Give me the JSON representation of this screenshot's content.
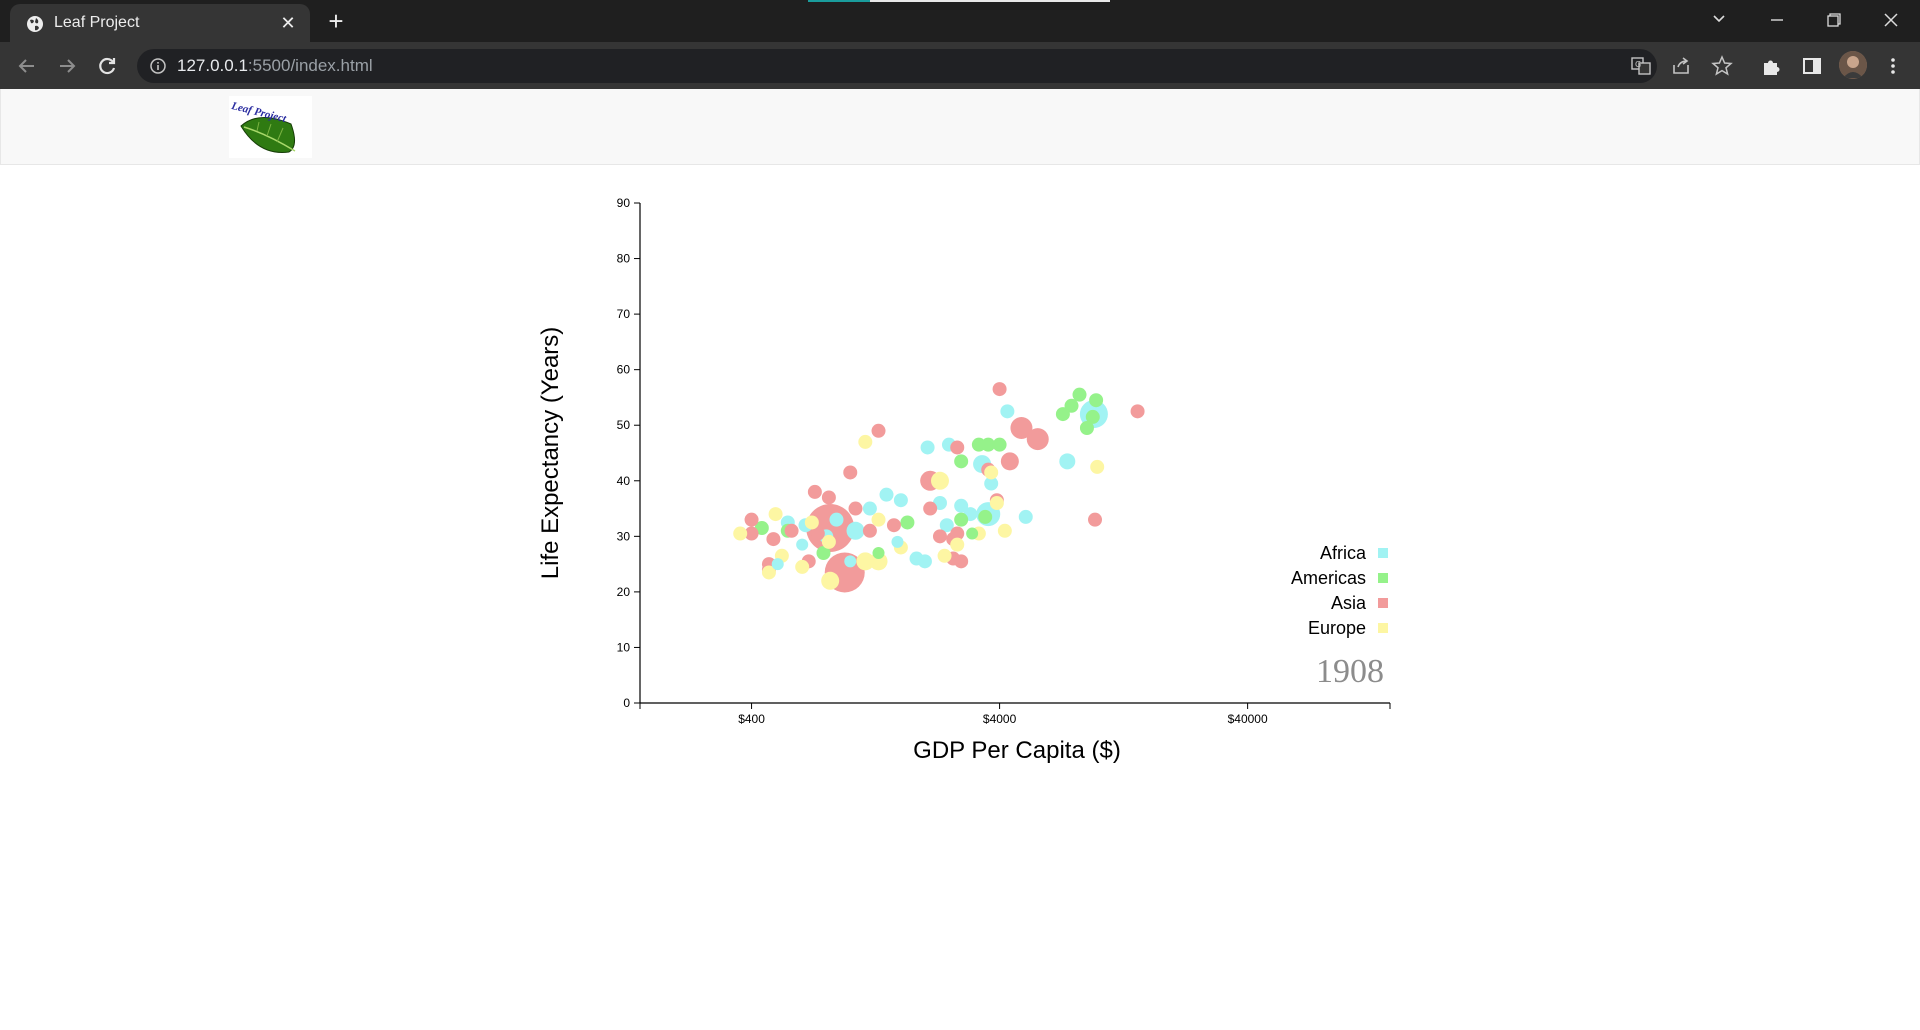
{
  "browser": {
    "tab_title": "Leaf Project",
    "url_host": "127.0.0.1",
    "url_path": ":5500/index.html"
  },
  "site": {
    "logo_text": "Leaf Project"
  },
  "chart_data": {
    "type": "scatter",
    "xlabel": "GDP Per Capita ($)",
    "ylabel": "Life Expectancy (Years)",
    "x_scale": "log",
    "xlim": [
      142,
      150000
    ],
    "ylim": [
      0,
      90
    ],
    "x_ticks": [
      400,
      4000,
      40000
    ],
    "x_tick_labels": [
      "$400",
      "$4000",
      "$40000"
    ],
    "y_ticks": [
      0,
      10,
      20,
      30,
      40,
      50,
      60,
      70,
      80,
      90
    ],
    "year_label": "1908",
    "legend_position": "bottom-right",
    "series": [
      {
        "name": "Africa",
        "color": "#a1f3f3",
        "points": [
          {
            "gdp": 3600,
            "life": 34,
            "size": 12
          },
          {
            "gdp": 3400,
            "life": 43,
            "size": 9
          },
          {
            "gdp": 4300,
            "life": 52.5,
            "size": 7
          },
          {
            "gdp": 7500,
            "life": 43.5,
            "size": 8
          },
          {
            "gdp": 9600,
            "life": 52,
            "size": 14
          },
          {
            "gdp": 1400,
            "life": 37.5,
            "size": 7
          },
          {
            "gdp": 1200,
            "life": 35,
            "size": 7
          },
          {
            "gdp": 1050,
            "life": 31,
            "size": 9
          },
          {
            "gdp": 880,
            "life": 33,
            "size": 7
          },
          {
            "gdp": 800,
            "life": 30,
            "size": 7
          },
          {
            "gdp": 660,
            "life": 32,
            "size": 7
          },
          {
            "gdp": 560,
            "life": 32.5,
            "size": 7
          },
          {
            "gdp": 510,
            "life": 25,
            "size": 6
          },
          {
            "gdp": 1850,
            "life": 26,
            "size": 7
          },
          {
            "gdp": 2000,
            "life": 25.5,
            "size": 7
          },
          {
            "gdp": 2300,
            "life": 36,
            "size": 7
          },
          {
            "gdp": 2800,
            "life": 35.5,
            "size": 7
          },
          {
            "gdp": 3050,
            "life": 34,
            "size": 7
          },
          {
            "gdp": 1600,
            "life": 36.5,
            "size": 7
          },
          {
            "gdp": 2500,
            "life": 46.5,
            "size": 7
          },
          {
            "gdp": 2050,
            "life": 46,
            "size": 7
          },
          {
            "gdp": 3700,
            "life": 39.5,
            "size": 7
          },
          {
            "gdp": 5100,
            "life": 33.5,
            "size": 7
          },
          {
            "gdp": 1550,
            "life": 29,
            "size": 6
          },
          {
            "gdp": 2450,
            "life": 32,
            "size": 7
          },
          {
            "gdp": 640,
            "life": 28.5,
            "size": 6
          },
          {
            "gdp": 1000,
            "life": 25.5,
            "size": 6
          }
        ]
      },
      {
        "name": "Americas",
        "color": "#95f28a",
        "points": [
          {
            "gdp": 8400,
            "life": 55.5,
            "size": 7
          },
          {
            "gdp": 7800,
            "life": 53.5,
            "size": 7
          },
          {
            "gdp": 9800,
            "life": 54.5,
            "size": 7
          },
          {
            "gdp": 9500,
            "life": 51.5,
            "size": 7
          },
          {
            "gdp": 9000,
            "life": 49.5,
            "size": 7
          },
          {
            "gdp": 7200,
            "life": 52,
            "size": 7
          },
          {
            "gdp": 3300,
            "life": 46.5,
            "size": 7
          },
          {
            "gdp": 3600,
            "life": 46.5,
            "size": 7
          },
          {
            "gdp": 2800,
            "life": 43.5,
            "size": 7
          },
          {
            "gdp": 4000,
            "life": 46.5,
            "size": 7
          },
          {
            "gdp": 2800,
            "life": 33,
            "size": 7
          },
          {
            "gdp": 3500,
            "life": 33.5,
            "size": 7
          },
          {
            "gdp": 1700,
            "life": 32.5,
            "size": 7
          },
          {
            "gdp": 780,
            "life": 27,
            "size": 7
          },
          {
            "gdp": 560,
            "life": 31,
            "size": 7
          },
          {
            "gdp": 440,
            "life": 31.5,
            "size": 7
          },
          {
            "gdp": 3100,
            "life": 30.5,
            "size": 6
          },
          {
            "gdp": 1300,
            "life": 27,
            "size": 6
          }
        ]
      },
      {
        "name": "Asia",
        "color": "#f29b9b",
        "points": [
          {
            "gdp": 950,
            "life": 23.5,
            "size": 20
          },
          {
            "gdp": 830,
            "life": 31.5,
            "size": 24
          },
          {
            "gdp": 4900,
            "life": 49.5,
            "size": 11
          },
          {
            "gdp": 5700,
            "life": 47.5,
            "size": 11
          },
          {
            "gdp": 4400,
            "life": 43.5,
            "size": 9
          },
          {
            "gdp": 2100,
            "life": 40,
            "size": 10
          },
          {
            "gdp": 14400,
            "life": 52.5,
            "size": 7
          },
          {
            "gdp": 4000,
            "life": 56.5,
            "size": 7
          },
          {
            "gdp": 9700,
            "life": 33,
            "size": 7
          },
          {
            "gdp": 3600,
            "life": 42,
            "size": 7
          },
          {
            "gdp": 1300,
            "life": 49,
            "size": 7
          },
          {
            "gdp": 2700,
            "life": 46,
            "size": 7
          },
          {
            "gdp": 1000,
            "life": 41.5,
            "size": 7
          },
          {
            "gdp": 720,
            "life": 38,
            "size": 7
          },
          {
            "gdp": 820,
            "life": 37,
            "size": 7
          },
          {
            "gdp": 1050,
            "life": 35,
            "size": 7
          },
          {
            "gdp": 400,
            "life": 33,
            "size": 7
          },
          {
            "gdp": 400,
            "life": 30.5,
            "size": 7
          },
          {
            "gdp": 580,
            "life": 31,
            "size": 7
          },
          {
            "gdp": 490,
            "life": 29.5,
            "size": 7
          },
          {
            "gdp": 470,
            "life": 25,
            "size": 7
          },
          {
            "gdp": 470,
            "life": 24,
            "size": 7
          },
          {
            "gdp": 680,
            "life": 25.5,
            "size": 7
          },
          {
            "gdp": 740,
            "life": 30.5,
            "size": 7
          },
          {
            "gdp": 1200,
            "life": 31,
            "size": 7
          },
          {
            "gdp": 1500,
            "life": 32,
            "size": 7
          },
          {
            "gdp": 2600,
            "life": 29.5,
            "size": 7
          },
          {
            "gdp": 2800,
            "life": 25.5,
            "size": 7
          },
          {
            "gdp": 2300,
            "life": 30,
            "size": 7
          },
          {
            "gdp": 3900,
            "life": 36.5,
            "size": 7
          },
          {
            "gdp": 2100,
            "life": 35,
            "size": 7
          },
          {
            "gdp": 2700,
            "life": 30.5,
            "size": 7
          },
          {
            "gdp": 2600,
            "life": 26,
            "size": 7
          }
        ]
      },
      {
        "name": "Europe",
        "color": "#fdf6a3",
        "points": [
          {
            "gdp": 2300,
            "life": 40,
            "size": 9
          },
          {
            "gdp": 1150,
            "life": 47,
            "size": 7
          },
          {
            "gdp": 3700,
            "life": 41.5,
            "size": 7
          },
          {
            "gdp": 9900,
            "life": 42.5,
            "size": 7
          },
          {
            "gdp": 4200,
            "life": 31,
            "size": 7
          },
          {
            "gdp": 3900,
            "life": 36,
            "size": 7
          },
          {
            "gdp": 1300,
            "life": 25.5,
            "size": 9
          },
          {
            "gdp": 1150,
            "life": 25.5,
            "size": 9
          },
          {
            "gdp": 830,
            "life": 22,
            "size": 9
          },
          {
            "gdp": 820,
            "life": 29,
            "size": 7
          },
          {
            "gdp": 640,
            "life": 24.5,
            "size": 7
          },
          {
            "gdp": 530,
            "life": 26.5,
            "size": 7
          },
          {
            "gdp": 470,
            "life": 23.5,
            "size": 7
          },
          {
            "gdp": 500,
            "life": 34,
            "size": 7
          },
          {
            "gdp": 360,
            "life": 30.5,
            "size": 7
          },
          {
            "gdp": 2700,
            "life": 28.5,
            "size": 7
          },
          {
            "gdp": 2400,
            "life": 26.5,
            "size": 7
          },
          {
            "gdp": 3300,
            "life": 30.5,
            "size": 7
          },
          {
            "gdp": 1600,
            "life": 28,
            "size": 7
          },
          {
            "gdp": 1300,
            "life": 33,
            "size": 7
          },
          {
            "gdp": 700,
            "life": 32.5,
            "size": 7
          }
        ]
      }
    ]
  }
}
